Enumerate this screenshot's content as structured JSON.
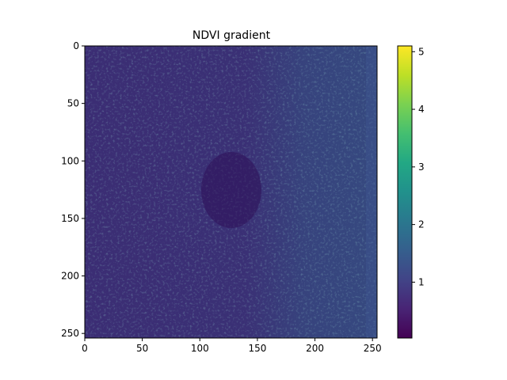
{
  "chart_data": {
    "type": "heatmap",
    "title": "NDVI gradient",
    "xlabel": "",
    "ylabel": "",
    "xlim": [
      0,
      254
    ],
    "ylim": [
      254,
      0
    ],
    "x_ticks": [
      0,
      50,
      100,
      150,
      200,
      250
    ],
    "y_ticks": [
      0,
      50,
      100,
      150,
      200,
      250
    ],
    "colormap": "viridis",
    "colorbar": {
      "range": [
        0.03,
        5.1
      ],
      "ticks": [
        1,
        2,
        3,
        4,
        5
      ]
    },
    "grid": false,
    "legend": "none",
    "description": ""
  }
}
